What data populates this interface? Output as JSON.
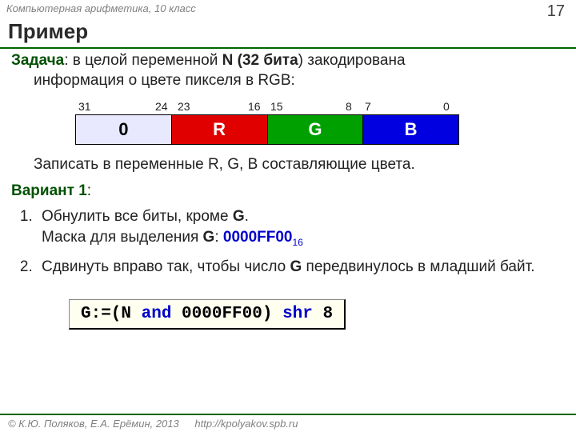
{
  "header": {
    "course": "Компьютерная арифметика, 10 класс",
    "page": "17"
  },
  "title": "Пример",
  "task": {
    "label": "Задача",
    "body_1": ":  в целой ",
    "body_2": "переменной",
    "body_3": " N (",
    "body_4": "32 бита",
    "body_5": ") закодирована",
    "body_6": "информация о цвете пикселя в RGB:"
  },
  "diagram": {
    "labels": {
      "b31": "31",
      "b24": "24",
      "b23": "23",
      "b16": "16",
      "b15": "15",
      "b8": "8",
      "b7": "7",
      "b0": "0"
    },
    "cells": {
      "c0": "0",
      "R": "R",
      "G": "G",
      "B": "B"
    },
    "colors": {
      "c0": "#e8e8ff",
      "R": "#e00000",
      "G": "#00a000",
      "B": "#0000e0"
    }
  },
  "subtask": "Записать в переменные R, G, B составляющие цвета.",
  "variant_label": "Вариант 1",
  "steps": {
    "s1a": "Обнулить все биты, кроме ",
    "s1b": "G",
    "s1c": ".",
    "s1d": "Маска для выделения ",
    "s1e": "G",
    "s1f": ": ",
    "mask": "0000FF00",
    "mask_sub": "16",
    "s2a": "Сдвинуть вправо так, чтобы число ",
    "s2b": "G",
    "s2c": " передвинулось в младший байт."
  },
  "code": {
    "p1": "G:=(N ",
    "kw1": "and",
    "p2": " 0000FF00) ",
    "kw2": "shr",
    "p3": " 8"
  },
  "footer": {
    "copyright": "© К.Ю. Поляков, Е.А. Ерёмин, 2013",
    "url": "http://kpolyakov.spb.ru"
  }
}
